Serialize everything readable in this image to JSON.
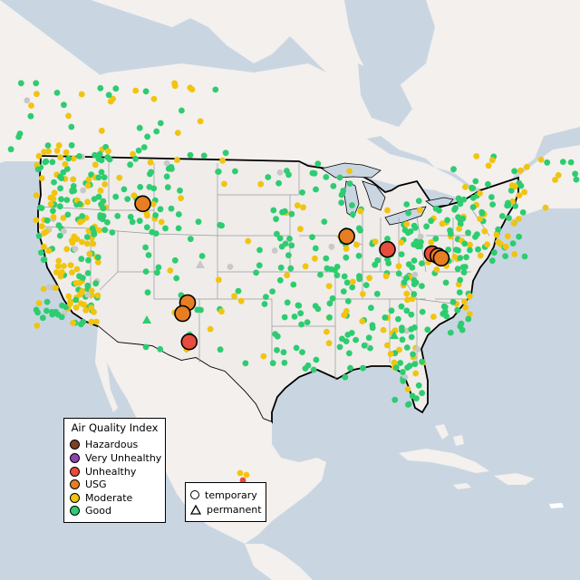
{
  "colors": {
    "ocean": "#c9d6e2",
    "land_us": "#efecea",
    "land_other": "#f3f0ed",
    "state_lines": "#9a9a9a",
    "border": "#000000",
    "good": "#2ecc71",
    "moderate": "#f1c40f",
    "usg": "#e67e22",
    "unhealthy": "#e74c3c",
    "very_unhealthy": "#8e44ad",
    "hazardous": "#7b3f2a",
    "unknown": "#c8c8c8"
  },
  "legend": {
    "title": "Air Quality Index",
    "items": [
      {
        "label": "Hazardous",
        "color": "#7b3f2a"
      },
      {
        "label": "Very Unhealthy",
        "color": "#8e44ad"
      },
      {
        "label": "Unhealthy",
        "color": "#e74c3c"
      },
      {
        "label": "USG",
        "color": "#e67e22"
      },
      {
        "label": "Moderate",
        "color": "#f1c40f"
      },
      {
        "label": "Good",
        "color": "#2ecc71"
      }
    ]
  },
  "type_legend": {
    "temporary": "temporary",
    "permanent": "permanent"
  },
  "large_markers": [
    {
      "category": "usg",
      "lon": -112.2,
      "lat": 44.6
    },
    {
      "category": "usg",
      "lon": -87.6,
      "lat": 41.6
    },
    {
      "category": "unhealthy",
      "lon": -82.7,
      "lat": 40.4
    },
    {
      "category": "unhealthy",
      "lon": -77.3,
      "lat": 40.0
    },
    {
      "category": "usg",
      "lon": -76.6,
      "lat": 39.8
    },
    {
      "category": "usg",
      "lon": -76.2,
      "lat": 39.6
    },
    {
      "category": "usg",
      "lon": -106.8,
      "lat": 35.5
    },
    {
      "category": "usg",
      "lon": -107.4,
      "lat": 34.5
    },
    {
      "category": "unhealthy",
      "lon": -106.6,
      "lat": 31.9
    }
  ]
}
